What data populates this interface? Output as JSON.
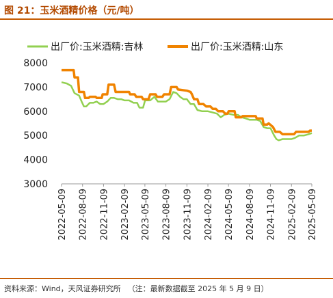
{
  "header": {
    "title": "图 21：玉米酒精价格（元/吨）"
  },
  "footer": {
    "source": "资料来源：Wind，天风证券研究所",
    "note": "（注：最新数据截至 2025 年 5 月 9 日）"
  },
  "colors": {
    "jilin": "#92d050",
    "shandong": "#f08300",
    "title": "#b34a00",
    "rule": "#c45a00",
    "axis": "#999999"
  },
  "chart_data": {
    "type": "line",
    "title": "",
    "xlabel": "",
    "ylabel": "",
    "ylim": [
      3000,
      8000
    ],
    "yticks": [
      3000,
      4000,
      5000,
      6000,
      7000,
      8000
    ],
    "xlim": [
      "2022-05-09",
      "2025-05-09"
    ],
    "xticks": [
      "2022-05-09",
      "2022-08-09",
      "2022-11-09",
      "2023-02-09",
      "2023-05-09",
      "2023-08-09",
      "2023-11-09",
      "2024-02-09",
      "2024-05-09",
      "2024-08-09",
      "2024-11-09",
      "2025-02-09",
      "2025-05-09"
    ],
    "grid": false,
    "legend": "top",
    "series": [
      {
        "name": "出厂价:玉米酒精:吉林",
        "color": "#92d050",
        "points": [
          [
            "2022-05-09",
            7200
          ],
          [
            "2022-06-01",
            7150
          ],
          [
            "2022-06-20",
            7050
          ],
          [
            "2022-07-05",
            6750
          ],
          [
            "2022-07-25",
            6650
          ],
          [
            "2022-08-05",
            6400
          ],
          [
            "2022-08-15",
            6200
          ],
          [
            "2022-08-25",
            6200
          ],
          [
            "2022-09-10",
            6350
          ],
          [
            "2022-09-25",
            6350
          ],
          [
            "2022-10-10",
            6400
          ],
          [
            "2022-10-25",
            6300
          ],
          [
            "2022-11-09",
            6300
          ],
          [
            "2022-11-25",
            6400
          ],
          [
            "2022-12-10",
            6550
          ],
          [
            "2022-12-25",
            6550
          ],
          [
            "2023-01-10",
            6500
          ],
          [
            "2023-01-25",
            6500
          ],
          [
            "2023-02-09",
            6450
          ],
          [
            "2023-03-01",
            6450
          ],
          [
            "2023-03-20",
            6350
          ],
          [
            "2023-04-05",
            6350
          ],
          [
            "2023-04-15",
            6150
          ],
          [
            "2023-05-01",
            6150
          ],
          [
            "2023-05-10",
            6450
          ],
          [
            "2023-06-01",
            6450
          ],
          [
            "2023-06-20",
            6600
          ],
          [
            "2023-07-05",
            6400
          ],
          [
            "2023-07-25",
            6400
          ],
          [
            "2023-08-09",
            6400
          ],
          [
            "2023-08-25",
            6500
          ],
          [
            "2023-09-10",
            6800
          ],
          [
            "2023-09-25",
            6750
          ],
          [
            "2023-10-10",
            6600
          ],
          [
            "2023-10-25",
            6500
          ],
          [
            "2023-11-09",
            6500
          ],
          [
            "2023-11-25",
            6300
          ],
          [
            "2023-12-10",
            6300
          ],
          [
            "2023-12-25",
            6050
          ],
          [
            "2024-01-15",
            6000
          ],
          [
            "2024-02-09",
            6000
          ],
          [
            "2024-03-01",
            5950
          ],
          [
            "2024-03-20",
            5900
          ],
          [
            "2024-04-05",
            5750
          ],
          [
            "2024-04-20",
            5850
          ],
          [
            "2024-05-09",
            5900
          ],
          [
            "2024-06-01",
            5850
          ],
          [
            "2024-06-20",
            5850
          ],
          [
            "2024-07-05",
            5750
          ],
          [
            "2024-07-25",
            5700
          ],
          [
            "2024-08-09",
            5650
          ],
          [
            "2024-08-25",
            5650
          ],
          [
            "2024-09-10",
            5650
          ],
          [
            "2024-09-25",
            5600
          ],
          [
            "2024-10-10",
            5350
          ],
          [
            "2024-10-25",
            5300
          ],
          [
            "2024-11-09",
            5300
          ],
          [
            "2024-11-25",
            5000
          ],
          [
            "2024-12-05",
            4850
          ],
          [
            "2024-12-15",
            4800
          ],
          [
            "2025-01-01",
            4850
          ],
          [
            "2025-01-20",
            4850
          ],
          [
            "2025-02-09",
            4850
          ],
          [
            "2025-02-25",
            4900
          ],
          [
            "2025-03-15",
            5000
          ],
          [
            "2025-04-05",
            5000
          ],
          [
            "2025-04-25",
            5050
          ],
          [
            "2025-05-09",
            5100
          ]
        ]
      },
      {
        "name": "出厂价:玉米酒精:山东",
        "color": "#f08300",
        "points": [
          [
            "2022-05-09",
            7700
          ],
          [
            "2022-06-01",
            7700
          ],
          [
            "2022-06-20",
            7700
          ],
          [
            "2022-07-01",
            7700
          ],
          [
            "2022-07-05",
            7400
          ],
          [
            "2022-07-20",
            7400
          ],
          [
            "2022-07-25",
            6800
          ],
          [
            "2022-08-15",
            6800
          ],
          [
            "2022-08-20",
            6550
          ],
          [
            "2022-09-05",
            6550
          ],
          [
            "2022-09-10",
            6600
          ],
          [
            "2022-10-05",
            6600
          ],
          [
            "2022-10-10",
            6550
          ],
          [
            "2022-11-01",
            6550
          ],
          [
            "2022-11-05",
            6700
          ],
          [
            "2022-11-25",
            6700
          ],
          [
            "2022-12-01",
            7100
          ],
          [
            "2022-12-25",
            7100
          ],
          [
            "2023-01-01",
            6800
          ],
          [
            "2023-01-25",
            6800
          ],
          [
            "2023-02-01",
            6800
          ],
          [
            "2023-03-01",
            6800
          ],
          [
            "2023-03-05",
            6700
          ],
          [
            "2023-03-25",
            6700
          ],
          [
            "2023-04-01",
            6600
          ],
          [
            "2023-04-25",
            6600
          ],
          [
            "2023-05-01",
            6500
          ],
          [
            "2023-05-25",
            6500
          ],
          [
            "2023-06-01",
            6700
          ],
          [
            "2023-06-25",
            6700
          ],
          [
            "2023-07-01",
            6600
          ],
          [
            "2023-07-25",
            6600
          ],
          [
            "2023-08-01",
            6700
          ],
          [
            "2023-08-25",
            6700
          ],
          [
            "2023-09-01",
            7000
          ],
          [
            "2023-09-25",
            7000
          ],
          [
            "2023-10-01",
            6900
          ],
          [
            "2023-11-09",
            6850
          ],
          [
            "2023-11-25",
            6800
          ],
          [
            "2023-12-01",
            6700
          ],
          [
            "2023-12-10",
            6500
          ],
          [
            "2023-12-25",
            6500
          ],
          [
            "2024-01-01",
            6300
          ],
          [
            "2024-01-20",
            6300
          ],
          [
            "2024-02-01",
            6200
          ],
          [
            "2024-02-20",
            6200
          ],
          [
            "2024-03-01",
            6100
          ],
          [
            "2024-03-15",
            6100
          ],
          [
            "2024-03-25",
            6000
          ],
          [
            "2024-04-15",
            6000
          ],
          [
            "2024-04-25",
            5900
          ],
          [
            "2024-05-05",
            5900
          ],
          [
            "2024-05-10",
            6000
          ],
          [
            "2024-06-05",
            6000
          ],
          [
            "2024-06-10",
            5750
          ],
          [
            "2024-07-05",
            5750
          ],
          [
            "2024-07-10",
            5800
          ],
          [
            "2024-09-05",
            5800
          ],
          [
            "2024-09-10",
            5700
          ],
          [
            "2024-10-05",
            5700
          ],
          [
            "2024-10-10",
            5450
          ],
          [
            "2024-10-25",
            5450
          ],
          [
            "2024-11-01",
            5500
          ],
          [
            "2024-11-20",
            5350
          ],
          [
            "2024-12-01",
            5150
          ],
          [
            "2024-12-20",
            5150
          ],
          [
            "2025-01-01",
            5050
          ],
          [
            "2025-02-09",
            5050
          ],
          [
            "2025-02-20",
            5050
          ],
          [
            "2025-03-01",
            5150
          ],
          [
            "2025-04-05",
            5150
          ],
          [
            "2025-04-25",
            5150
          ],
          [
            "2025-05-01",
            5200
          ],
          [
            "2025-05-09",
            5200
          ]
        ]
      }
    ]
  }
}
